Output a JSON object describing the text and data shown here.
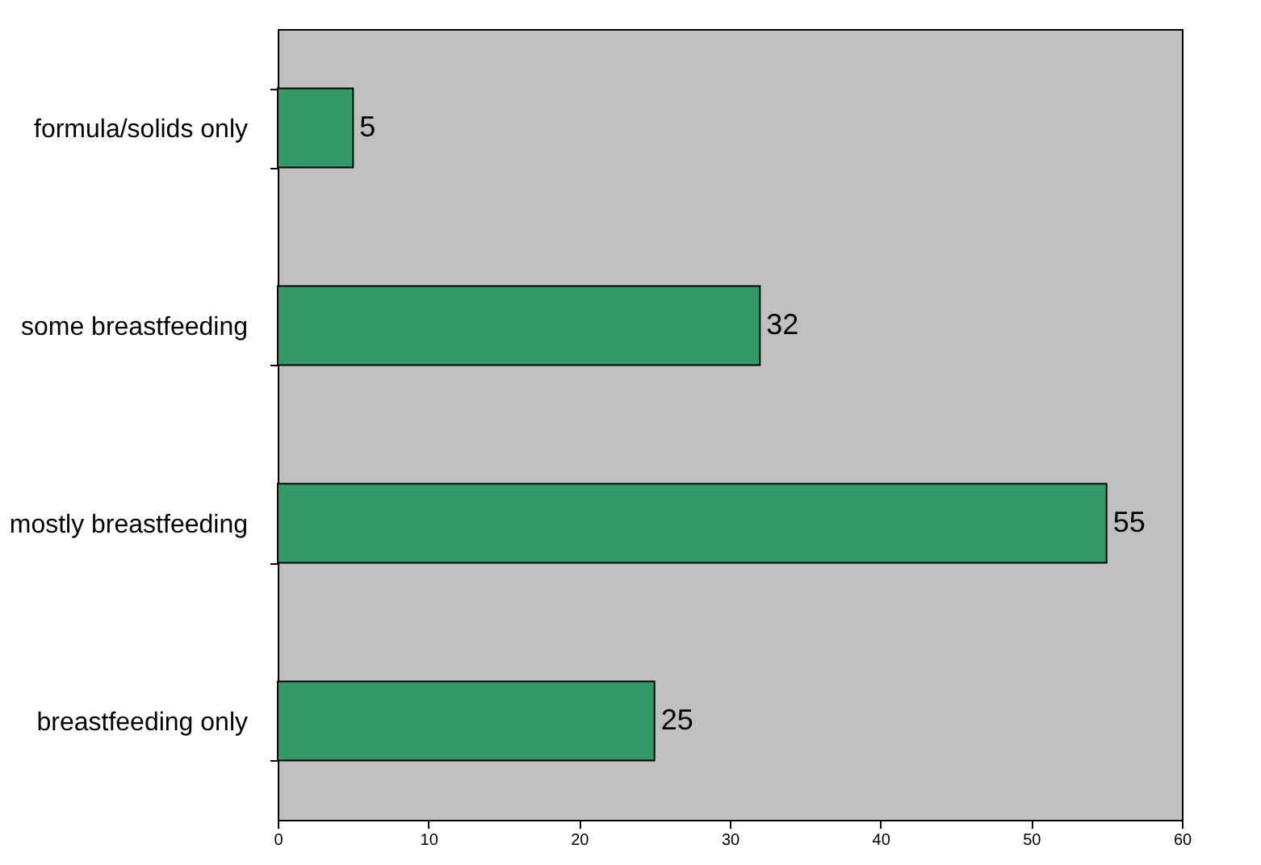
{
  "chart_data": {
    "type": "bar",
    "orientation": "horizontal",
    "categories": [
      "formula/solids only",
      "some breastfeeding",
      "mostly breastfeeding",
      "breastfeeding only"
    ],
    "values": [
      5,
      32,
      55,
      25
    ],
    "color": "#339966",
    "xlim": [
      0,
      60
    ],
    "xticks": [
      0,
      10,
      20,
      30,
      40,
      50,
      60
    ],
    "data_labels": true,
    "grid": false
  }
}
